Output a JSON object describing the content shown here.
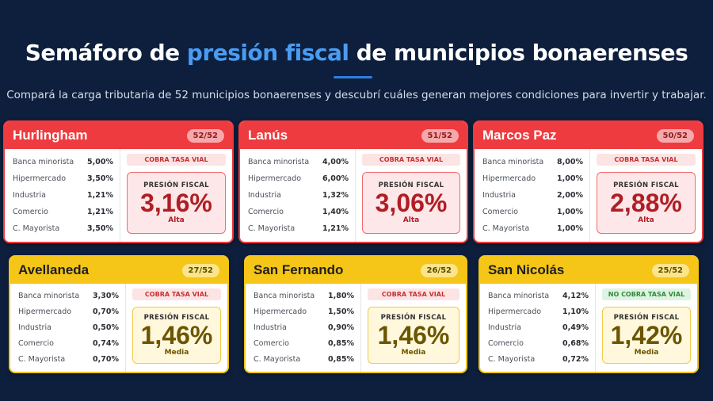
{
  "header": {
    "title_part1": "Semáforo de ",
    "title_highlight": "presión fiscal",
    "title_part2": " de municipios bonaerenses",
    "subtitle": "Compará la carga tributaria de 52 municipios bonaerenses y descubrí cuáles generan mejores condiciones para invertir y trabajar."
  },
  "presion_label": "PRESIÓN FISCAL",
  "colors": {
    "red": "#ee3b3f",
    "yellow": "#f5c517",
    "background": "#0d1f3c",
    "highlight": "#4a9cf2"
  },
  "cards": [
    {
      "name": "Hurlingham",
      "rank": "52/52",
      "level_color": "red",
      "tasa": "COBRA TASA VIAL",
      "presion": "3,16%",
      "nivel": "Alta",
      "rates": [
        {
          "label": "Banca minorista",
          "value": "5,00%"
        },
        {
          "label": "Hipermercado",
          "value": "3,50%"
        },
        {
          "label": "Industria",
          "value": "1,21%"
        },
        {
          "label": "Comercio",
          "value": "1,21%"
        },
        {
          "label": "C. Mayorista",
          "value": "3,50%"
        }
      ]
    },
    {
      "name": "Lanús",
      "rank": "51/52",
      "level_color": "red",
      "tasa": "COBRA TASA VIAL",
      "presion": "3,06%",
      "nivel": "Alta",
      "rates": [
        {
          "label": "Banca minorista",
          "value": "4,00%"
        },
        {
          "label": "Hipermercado",
          "value": "6,00%"
        },
        {
          "label": "Industria",
          "value": "1,32%"
        },
        {
          "label": "Comercio",
          "value": "1,40%"
        },
        {
          "label": "C. Mayorista",
          "value": "1,21%"
        }
      ]
    },
    {
      "name": "Marcos Paz",
      "rank": "50/52",
      "level_color": "red",
      "tasa": "COBRA TASA VIAL",
      "presion": "2,88%",
      "nivel": "Alta",
      "rates": [
        {
          "label": "Banca minorista",
          "value": "8,00%"
        },
        {
          "label": "Hipermercado",
          "value": "1,00%"
        },
        {
          "label": "Industria",
          "value": "2,00%"
        },
        {
          "label": "Comercio",
          "value": "1,00%"
        },
        {
          "label": "C. Mayorista",
          "value": "1,00%"
        }
      ]
    },
    {
      "name": "Avellaneda",
      "rank": "27/52",
      "level_color": "yellow",
      "tasa": "COBRA TASA VIAL",
      "presion": "1,46%",
      "nivel": "Media",
      "rates": [
        {
          "label": "Banca minorista",
          "value": "3,30%"
        },
        {
          "label": "Hipermercado",
          "value": "0,70%"
        },
        {
          "label": "Industria",
          "value": "0,50%"
        },
        {
          "label": "Comercio",
          "value": "0,74%"
        },
        {
          "label": "C. Mayorista",
          "value": "0,70%"
        }
      ]
    },
    {
      "name": "San Fernando",
      "rank": "26/52",
      "level_color": "yellow",
      "tasa": "COBRA TASA VIAL",
      "presion": "1,46%",
      "nivel": "Media",
      "rates": [
        {
          "label": "Banca minorista",
          "value": "1,80%"
        },
        {
          "label": "Hipermercado",
          "value": "1,50%"
        },
        {
          "label": "Industria",
          "value": "0,90%"
        },
        {
          "label": "Comercio",
          "value": "0,85%"
        },
        {
          "label": "C. Mayorista",
          "value": "0,85%"
        }
      ]
    },
    {
      "name": "San Nicolás",
      "rank": "25/52",
      "level_color": "yellow",
      "tasa": "NO COBRA TASA VIAL",
      "presion": "1,42%",
      "nivel": "Media",
      "rates": [
        {
          "label": "Banca minorista",
          "value": "4,12%"
        },
        {
          "label": "Hipermercado",
          "value": "1,10%"
        },
        {
          "label": "Industria",
          "value": "0,49%"
        },
        {
          "label": "Comercio",
          "value": "0,68%"
        },
        {
          "label": "C. Mayorista",
          "value": "0,72%"
        }
      ]
    }
  ]
}
